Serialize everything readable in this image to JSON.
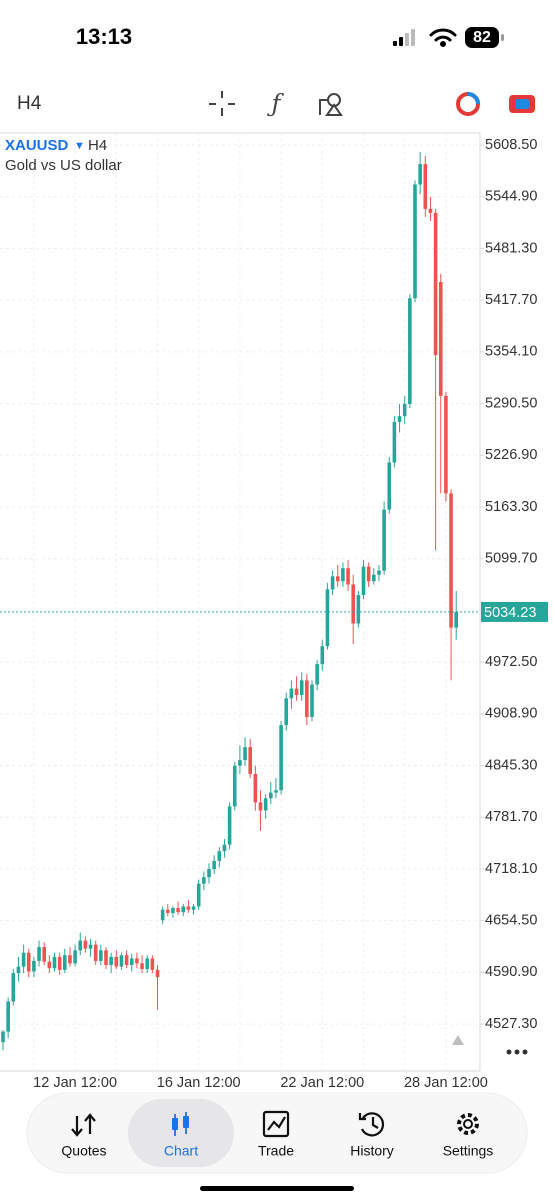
{
  "status_bar": {
    "time": "13:13",
    "battery": "82"
  },
  "toolbar": {
    "timeframe": "H4"
  },
  "chart_data": {
    "type": "candlestick",
    "symbol": "XAUUSD",
    "timeframe": "H4",
    "subtitle": "Gold vs US dollar",
    "categories": [
      null,
      null,
      null,
      null,
      null,
      null,
      null,
      null,
      null,
      null,
      null,
      null,
      null,
      null,
      "12 Jan 12:00",
      null,
      null,
      null,
      null,
      null,
      null,
      null,
      null,
      null,
      null,
      null,
      null,
      null,
      null,
      null,
      null,
      null,
      null,
      null,
      null,
      null,
      null,
      null,
      "16 Jan 12:00",
      null,
      null,
      null,
      null,
      null,
      null,
      null,
      null,
      null,
      null,
      null,
      null,
      null,
      null,
      null,
      null,
      null,
      null,
      null,
      null,
      null,
      null,
      null,
      "22 Jan 12:00",
      null,
      null,
      null,
      null,
      null,
      null,
      null,
      null,
      null,
      null,
      null,
      null,
      null,
      null,
      null,
      null,
      null,
      null,
      null,
      null,
      null,
      null,
      null,
      "28 Jan 12:00",
      null,
      null
    ],
    "open": [
      4505,
      4518,
      4555,
      4590,
      4598,
      4615,
      4592,
      4605,
      4622,
      4604,
      4596,
      4610,
      4594,
      4612,
      4602,
      4618,
      4630,
      4620,
      4625,
      4605,
      4618,
      4600,
      4610,
      4598,
      4612,
      4600,
      4608,
      4602,
      4595,
      4608,
      4594,
      4655,
      4668,
      4664,
      4670,
      4665,
      4672,
      4668,
      4672,
      4700,
      4708,
      4718,
      4728,
      4740,
      4748,
      4795,
      4845,
      4852,
      4868,
      4835,
      4800,
      4790,
      4805,
      4812,
      4815,
      4895,
      4928,
      4940,
      4932,
      4950,
      4905,
      4945,
      4970,
      4992,
      5062,
      5078,
      5072,
      5088,
      5068,
      5020,
      5055,
      5090,
      5072,
      5080,
      5085,
      5160,
      5218,
      5268,
      5275,
      5290,
      5420,
      5560,
      5585,
      5530,
      5525,
      5440,
      5300,
      5180,
      5015
    ],
    "high": [
      4520,
      4560,
      4595,
      4610,
      4625,
      4620,
      4610,
      4630,
      4628,
      4612,
      4615,
      4615,
      4620,
      4622,
      4625,
      4640,
      4635,
      4632,
      4630,
      4625,
      4622,
      4615,
      4618,
      4615,
      4618,
      4614,
      4615,
      4612,
      4612,
      4612,
      4600,
      4672,
      4675,
      4672,
      4678,
      4675,
      4680,
      4675,
      4705,
      4715,
      4725,
      4735,
      4745,
      4755,
      4800,
      4850,
      4870,
      4880,
      4878,
      4845,
      4815,
      4810,
      4825,
      4830,
      4900,
      4935,
      4950,
      4955,
      4960,
      4958,
      4950,
      4975,
      5000,
      5070,
      5085,
      5092,
      5095,
      5098,
      5080,
      5060,
      5098,
      5095,
      5088,
      5092,
      5170,
      5225,
      5275,
      5290,
      5300,
      5425,
      5565,
      5600,
      5595,
      5545,
      5530,
      5450,
      5305,
      5185,
      5060
    ],
    "low": [
      4495,
      4510,
      4550,
      4580,
      4590,
      4585,
      4585,
      4598,
      4600,
      4590,
      4592,
      4588,
      4590,
      4598,
      4598,
      4612,
      4615,
      4610,
      4600,
      4600,
      4595,
      4590,
      4595,
      4594,
      4596,
      4592,
      4596,
      4590,
      4590,
      4590,
      4545,
      4650,
      4660,
      4658,
      4662,
      4660,
      4664,
      4662,
      4668,
      4692,
      4700,
      4712,
      4720,
      4732,
      4742,
      4790,
      4835,
      4845,
      4830,
      4790,
      4765,
      4780,
      4798,
      4805,
      4810,
      4888,
      4915,
      4925,
      4925,
      4895,
      4900,
      4938,
      4962,
      4988,
      5055,
      5065,
      5065,
      5060,
      4995,
      5015,
      5050,
      5065,
      5068,
      5072,
      5080,
      5155,
      5212,
      5255,
      5265,
      5285,
      5415,
      5548,
      5520,
      5515,
      5110,
      5180,
      5170,
      4950,
      5000
    ],
    "close": [
      4518,
      4555,
      4590,
      4598,
      4615,
      4592,
      4605,
      4622,
      4604,
      4596,
      4610,
      4594,
      4612,
      4602,
      4618,
      4630,
      4620,
      4625,
      4605,
      4618,
      4600,
      4610,
      4598,
      4612,
      4600,
      4608,
      4602,
      4595,
      4608,
      4594,
      4585,
      4668,
      4664,
      4670,
      4665,
      4672,
      4668,
      4672,
      4700,
      4708,
      4718,
      4728,
      4740,
      4748,
      4795,
      4845,
      4852,
      4868,
      4835,
      4800,
      4790,
      4805,
      4812,
      4815,
      4895,
      4928,
      4940,
      4932,
      4950,
      4905,
      4945,
      4970,
      4992,
      5062,
      5078,
      5072,
      5088,
      5068,
      5020,
      5055,
      5090,
      5072,
      5080,
      5085,
      5160,
      5218,
      5268,
      5275,
      5290,
      5420,
      5560,
      5585,
      5530,
      5525,
      5350,
      5300,
      5180,
      5015,
      5034.23
    ],
    "up_color": "#26a69a",
    "down_color": "#ef5350",
    "current_price": 5034.23,
    "ylim": [
      4469.6,
      5623.3
    ],
    "yticks": [
      {
        "value": 5608.5,
        "label": "5608.50"
      },
      {
        "value": 5544.9,
        "label": "5544.90"
      },
      {
        "value": 5481.3,
        "label": "5481.30"
      },
      {
        "value": 5417.7,
        "label": "5417.70"
      },
      {
        "value": 5354.1,
        "label": "5354.10"
      },
      {
        "value": 5290.5,
        "label": "5290.50"
      },
      {
        "value": 5226.9,
        "label": "5226.90"
      },
      {
        "value": 5163.3,
        "label": "5163.30"
      },
      {
        "value": 5099.7,
        "label": "5099.70"
      },
      {
        "value": 4972.5,
        "label": "4972.50"
      },
      {
        "value": 4908.9,
        "label": "4908.90"
      },
      {
        "value": 4845.3,
        "label": "4845.30"
      },
      {
        "value": 4781.7,
        "label": "4781.70"
      },
      {
        "value": 4718.1,
        "label": "4718.10"
      },
      {
        "value": 4654.5,
        "label": "4654.50"
      },
      {
        "value": 4590.9,
        "label": "4590.90"
      },
      {
        "value": 4527.3,
        "label": "4527.30"
      }
    ],
    "grid": true
  },
  "tab_bar": {
    "tabs": [
      "Quotes",
      "Chart",
      "Trade",
      "History",
      "Settings"
    ],
    "active": 1
  }
}
